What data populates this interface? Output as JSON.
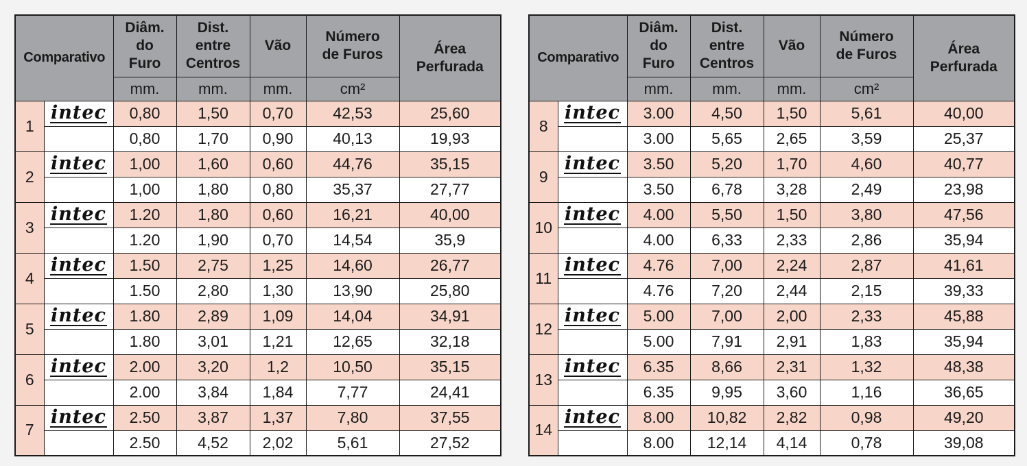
{
  "headers": {
    "comparativo": "Comparativo",
    "diametro": [
      "Diâm.",
      "do",
      "Furo"
    ],
    "distancia": [
      "Dist.",
      "entre",
      "Centros"
    ],
    "vao": "Vão",
    "numero": [
      "Número",
      "de Furos"
    ],
    "area": [
      "Área",
      "Perfurada"
    ],
    "units": [
      "mm.",
      "mm.",
      "mm.",
      "cm²"
    ]
  },
  "brand": "intec",
  "tables": [
    {
      "groups": [
        {
          "num": "1",
          "rows": [
            [
              "0,80",
              "1,50",
              "0,70",
              "42,53",
              "25,60"
            ],
            [
              "0,80",
              "1,70",
              "0,90",
              "40,13",
              "19,93"
            ]
          ]
        },
        {
          "num": "2",
          "rows": [
            [
              "1,00",
              "1,60",
              "0,60",
              "44,76",
              "35,15"
            ],
            [
              "1,00",
              "1,80",
              "0,80",
              "35,37",
              "27,77"
            ]
          ]
        },
        {
          "num": "3",
          "rows": [
            [
              "1.20",
              "1,80",
              "0,60",
              "16,21",
              "40,00"
            ],
            [
              "1.20",
              "1,90",
              "0,70",
              "14,54",
              "35,9"
            ]
          ]
        },
        {
          "num": "4",
          "rows": [
            [
              "1.50",
              "2,75",
              "1,25",
              "14,60",
              "26,77"
            ],
            [
              "1.50",
              "2,80",
              "1,30",
              "13,90",
              "25,80"
            ]
          ]
        },
        {
          "num": "5",
          "rows": [
            [
              "1.80",
              "2,89",
              "1,09",
              "14,04",
              "34,91"
            ],
            [
              "1.80",
              "3,01",
              "1,21",
              "12,65",
              "32,18"
            ]
          ]
        },
        {
          "num": "6",
          "rows": [
            [
              "2.00",
              "3,20",
              "1,2",
              "10,50",
              "35,15"
            ],
            [
              "2.00",
              "3,84",
              "1,84",
              "7,77",
              "24,41"
            ]
          ]
        },
        {
          "num": "7",
          "rows": [
            [
              "2.50",
              "3,87",
              "1,37",
              "7,80",
              "37,55"
            ],
            [
              "2.50",
              "4,52",
              "2,02",
              "5,61",
              "27,52"
            ]
          ]
        }
      ]
    },
    {
      "groups": [
        {
          "num": "8",
          "rows": [
            [
              "3.00",
              "4,50",
              "1,50",
              "5,61",
              "40,00"
            ],
            [
              "3.00",
              "5,65",
              "2,65",
              "3,59",
              "25,37"
            ]
          ]
        },
        {
          "num": "9",
          "rows": [
            [
              "3.50",
              "5,20",
              "1,70",
              "4,60",
              "40,77"
            ],
            [
              "3.50",
              "6,78",
              "3,28",
              "2,49",
              "23,98"
            ]
          ]
        },
        {
          "num": "10",
          "rows": [
            [
              "4.00",
              "5,50",
              "1,50",
              "3,80",
              "47,56"
            ],
            [
              "4.00",
              "6,33",
              "2,33",
              "2,86",
              "35,94"
            ]
          ]
        },
        {
          "num": "11",
          "rows": [
            [
              "4.76",
              "7,00",
              "2,24",
              "2,87",
              "41,61"
            ],
            [
              "4.76",
              "7,20",
              "2,44",
              "2,15",
              "39,33"
            ]
          ]
        },
        {
          "num": "12",
          "rows": [
            [
              "5.00",
              "7,00",
              "2,00",
              "2,33",
              "45,88"
            ],
            [
              "5.00",
              "7,91",
              "2,91",
              "1,83",
              "35,94"
            ]
          ]
        },
        {
          "num": "13",
          "rows": [
            [
              "6.35",
              "8,66",
              "2,31",
              "1,32",
              "48,38"
            ],
            [
              "6.35",
              "9,95",
              "3,60",
              "1,16",
              "36,65"
            ]
          ]
        },
        {
          "num": "14",
          "rows": [
            [
              "8.00",
              "10,82",
              "2,82",
              "0,98",
              "49,20"
            ],
            [
              "8.00",
              "12,14",
              "4,14",
              "0,78",
              "39,08"
            ]
          ]
        }
      ]
    }
  ]
}
